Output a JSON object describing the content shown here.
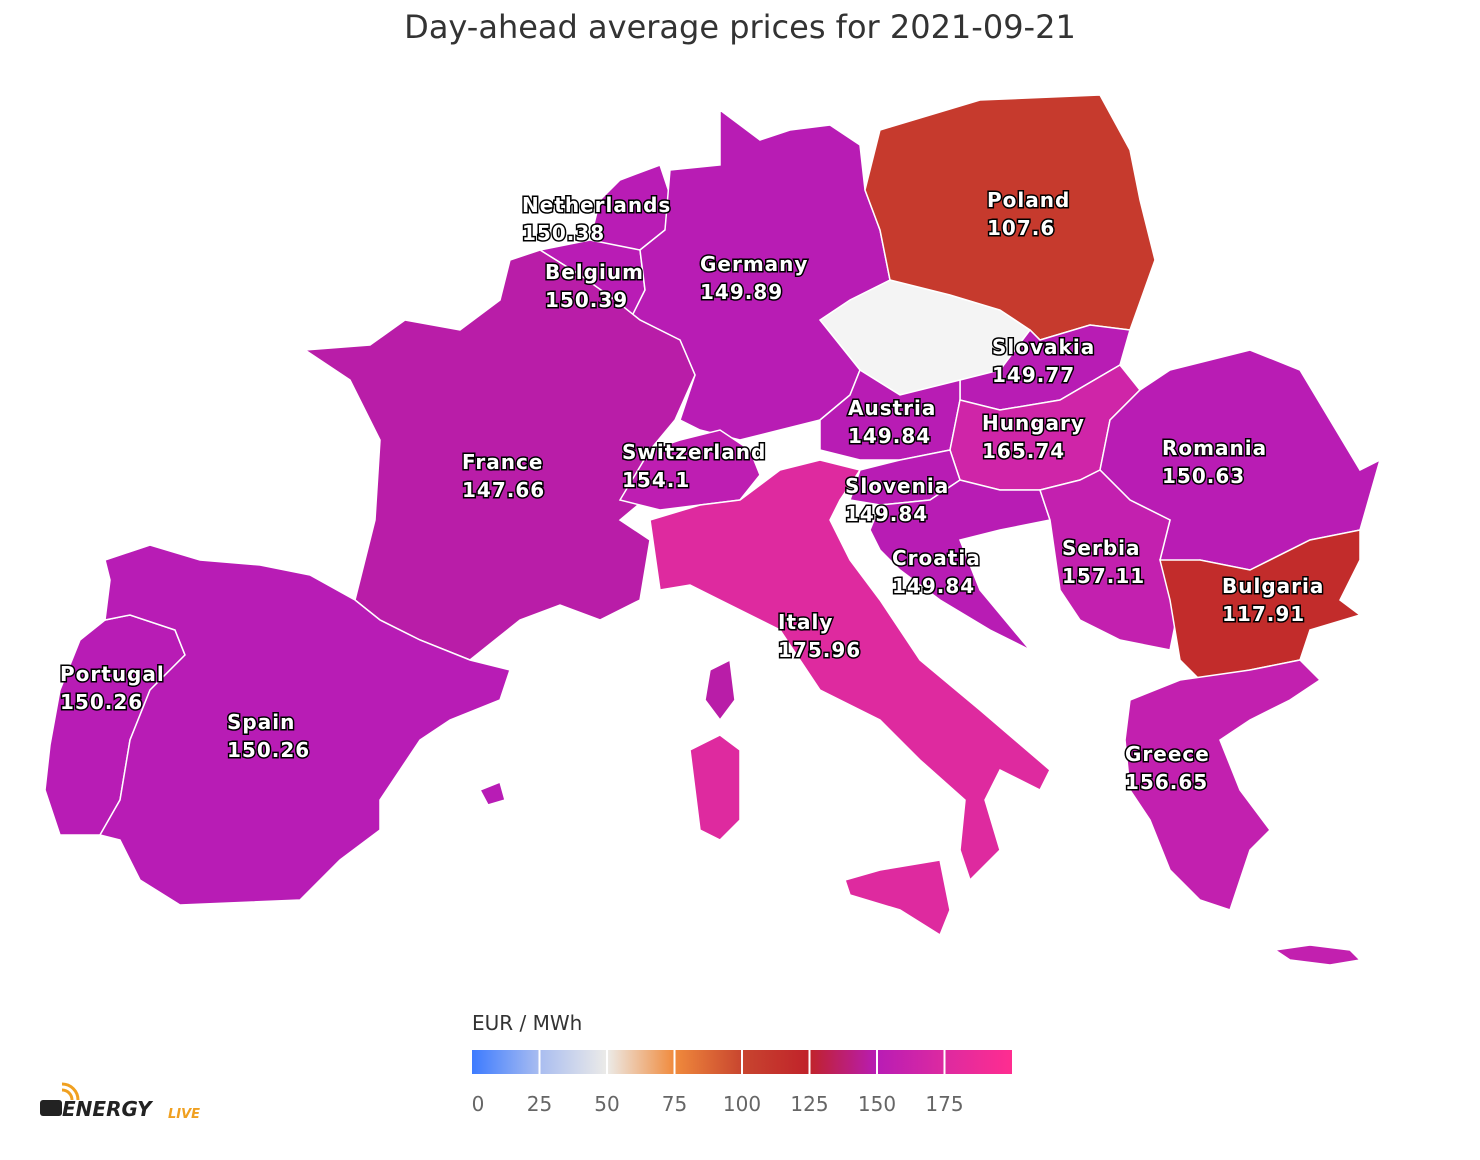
{
  "title": "Day-ahead average prices for 2021-09-21",
  "countries": [
    {
      "name": "Netherlands",
      "value": 150.38
    },
    {
      "name": "Belgium",
      "value": 150.39
    },
    {
      "name": "Germany",
      "value": 149.89
    },
    {
      "name": "Poland",
      "value": 107.6
    },
    {
      "name": "Slovakia",
      "value": 149.77
    },
    {
      "name": "Austria",
      "value": 149.84
    },
    {
      "name": "Hungary",
      "value": 165.74
    },
    {
      "name": "France",
      "value": 147.66
    },
    {
      "name": "Switzerland",
      "value": 154.1
    },
    {
      "name": "Slovenia",
      "value": 149.84
    },
    {
      "name": "Romania",
      "value": 150.63
    },
    {
      "name": "Croatia",
      "value": 149.84
    },
    {
      "name": "Serbia",
      "value": 157.11
    },
    {
      "name": "Bulgaria",
      "value": 117.91
    },
    {
      "name": "Italy",
      "value": 175.96
    },
    {
      "name": "Portugal",
      "value": 150.26
    },
    {
      "name": "Spain",
      "value": 150.26
    },
    {
      "name": "Greece",
      "value": 156.65
    }
  ],
  "legend": {
    "title": "EUR / MWh",
    "lim": [
      0,
      200
    ],
    "ticks": [
      0,
      25,
      50,
      75,
      100,
      125,
      150,
      175
    ],
    "color_stops": [
      {
        "value": 0,
        "color": "#3d7bff"
      },
      {
        "value": 25,
        "color": "#a9bdf0"
      },
      {
        "value": 50,
        "color": "#ecebe8"
      },
      {
        "value": 75,
        "color": "#f08a3c"
      },
      {
        "value": 100,
        "color": "#c8452f"
      },
      {
        "value": 125,
        "color": "#c0222a"
      },
      {
        "value": 150,
        "color": "#b81cb5"
      },
      {
        "value": 175,
        "color": "#dd2aa0"
      },
      {
        "value": 200,
        "color": "#ff2d90"
      }
    ]
  },
  "logo": {
    "brand": "ENERGY",
    "suffix": "LIVE"
  }
}
